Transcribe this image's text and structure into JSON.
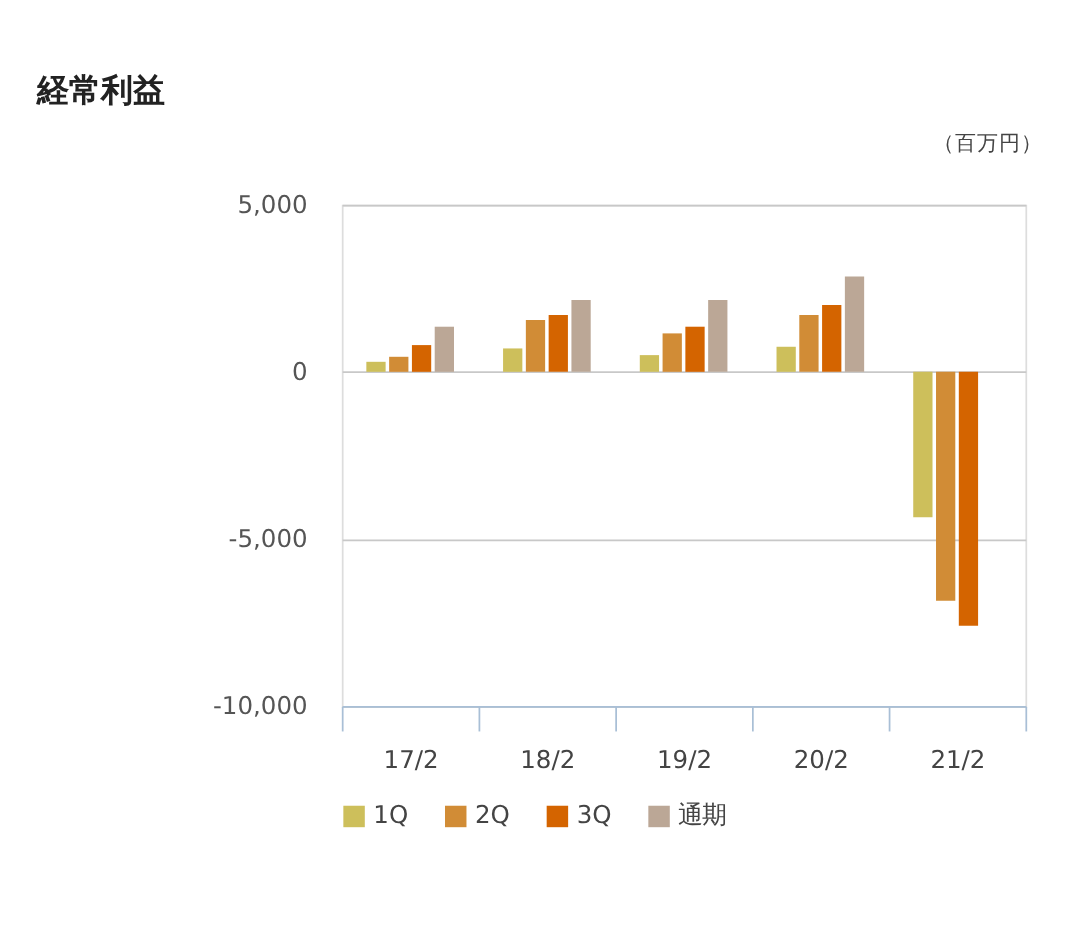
{
  "chart_data": {
    "type": "bar",
    "title": "経常利益",
    "annotations": [
      "（百万円）"
    ],
    "categories": [
      "17/2",
      "18/2",
      "19/2",
      "20/2",
      "21/2"
    ],
    "series": [
      {
        "name": "1Q",
        "color": "#cdbf5b",
        "values": [
          300,
          700,
          500,
          750,
          -4350
        ]
      },
      {
        "name": "2Q",
        "color": "#d18c36",
        "values": [
          450,
          1550,
          1150,
          1700,
          -6850
        ]
      },
      {
        "name": "3Q",
        "color": "#d46400",
        "values": [
          800,
          1700,
          1350,
          2000,
          -7600
        ]
      },
      {
        "name": "通期",
        "color": "#bba796",
        "values": [
          1350,
          2150,
          2150,
          2850,
          null
        ]
      }
    ],
    "ylim": [
      -10000,
      5000
    ],
    "yticks": [
      {
        "value": -10000,
        "label": "-10,000"
      },
      {
        "value": -5000,
        "label": "-5,000"
      },
      0,
      {
        "value": 5000,
        "label": "5,000"
      }
    ],
    "grid": "y",
    "legend": "bottom"
  }
}
